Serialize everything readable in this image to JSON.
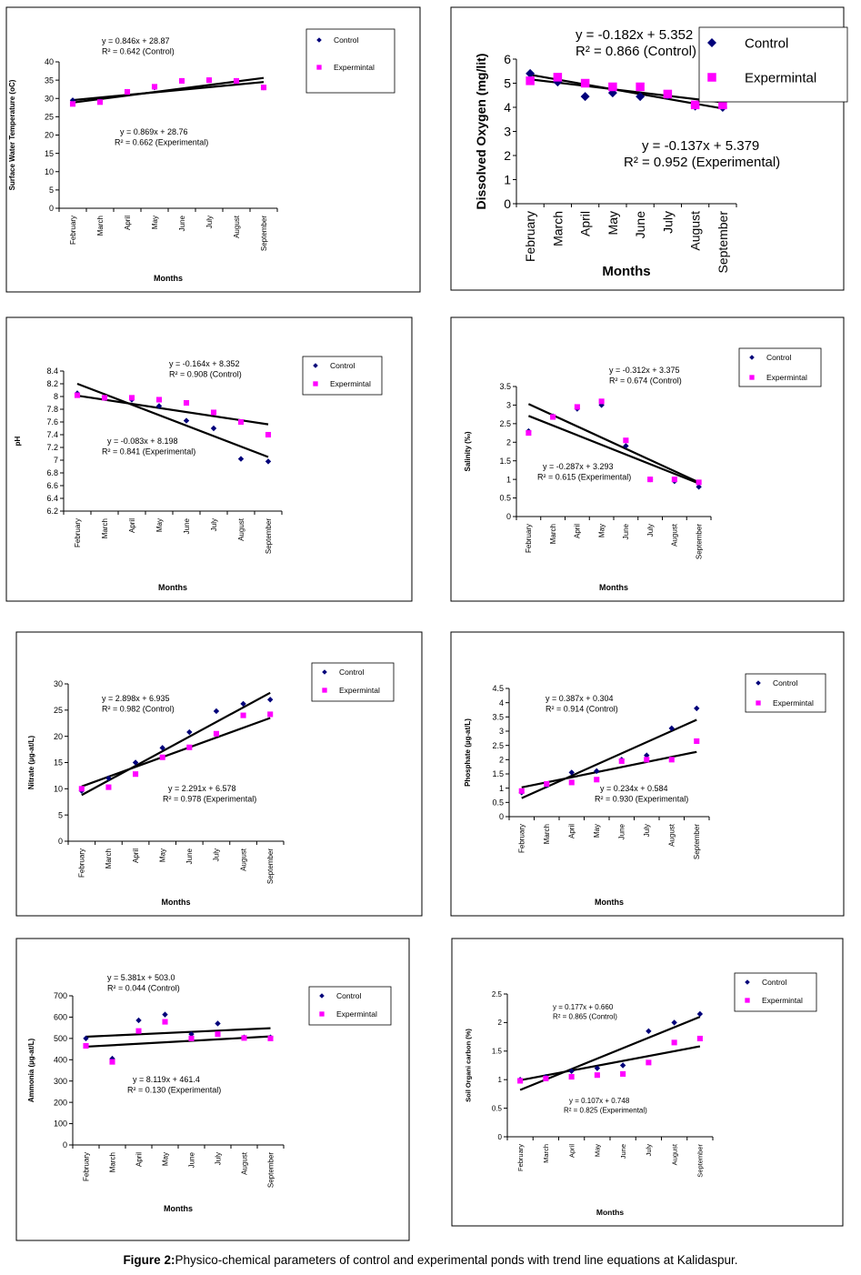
{
  "caption": {
    "bold": "Figure 2:",
    "text": "Physico-chemical parameters of control and experimental ponds with trend line equations at Kalidaspur."
  },
  "months": [
    "February",
    "March",
    "April",
    "May",
    "June",
    "July",
    "August",
    "September"
  ],
  "colors": {
    "control": "#00007a",
    "experimental": "#ff00ff",
    "trend": "#000000"
  },
  "chart_data": [
    {
      "type": "scatter",
      "ylabel": "Surface Water Temperature (oC)",
      "xlabel": "Months",
      "ylim": [
        0,
        40
      ],
      "yticks": [
        0,
        5,
        10,
        15,
        20,
        25,
        30,
        35,
        40
      ],
      "legend": [
        "Control",
        "Expermintal"
      ],
      "series": [
        {
          "name": "Control",
          "values": [
            29.5,
            29.2,
            31.8,
            33.0,
            34.8,
            35.0,
            34.8,
            33.0
          ]
        },
        {
          "name": "Expermintal",
          "values": [
            28.5,
            29.0,
            31.8,
            33.2,
            34.8,
            35.0,
            34.8,
            33.0
          ]
        }
      ],
      "trend_control": {
        "text1": "y = 0.846x + 28.87",
        "text2": "R² = 0.642 (Control)"
      },
      "trend_experimental": {
        "text1": "y = 0.869x + 28.76",
        "text2": "R² = 0.662 (Experimental)"
      }
    },
    {
      "type": "scatter",
      "ylabel": "Dissolved Oxygen (mg/lit)",
      "xlabel": "Months",
      "ylim": [
        0,
        6
      ],
      "yticks": [
        0,
        1,
        2,
        3,
        4,
        5,
        6
      ],
      "legend": [
        "Control",
        "Expermintal"
      ],
      "series": [
        {
          "name": "Control",
          "values": [
            5.4,
            5.05,
            4.45,
            4.6,
            4.45,
            4.5,
            4.05,
            4.0
          ]
        },
        {
          "name": "Expermintal",
          "values": [
            5.1,
            5.25,
            5.0,
            4.85,
            4.85,
            4.55,
            4.1,
            4.1
          ]
        }
      ],
      "trend_control": {
        "text1": "y = -0.182x + 5.352",
        "text2": "R² = 0.866 (Control)"
      },
      "trend_experimental": {
        "text1": "y = -0.137x + 5.379",
        "text2": "R² = 0.952 (Experimental)"
      }
    },
    {
      "type": "scatter",
      "ylabel": "pH",
      "xlabel": "Months",
      "ylim": [
        6.2,
        8.4
      ],
      "yticks": [
        6.2,
        6.4,
        6.6,
        6.8,
        7,
        7.2,
        7.4,
        7.6,
        7.8,
        8,
        8.2,
        8.4
      ],
      "legend": [
        "Control",
        "Expermintal"
      ],
      "series": [
        {
          "name": "Control",
          "values": [
            8.05,
            7.98,
            7.95,
            7.85,
            7.62,
            7.5,
            7.02,
            6.98
          ]
        },
        {
          "name": "Expermintal",
          "values": [
            8.02,
            7.98,
            7.98,
            7.95,
            7.9,
            7.75,
            7.6,
            7.4
          ]
        }
      ],
      "trend_control": {
        "text1": "y = -0.164x + 8.352",
        "text2": "R² = 0.908 (Control)"
      },
      "trend_experimental": {
        "text1": "y = -0.083x + 8.198",
        "text2": "R² = 0.841 (Experimental)"
      }
    },
    {
      "type": "scatter",
      "ylabel": "Salinity (‰)",
      "xlabel": "Months",
      "ylim": [
        0,
        3.5
      ],
      "yticks": [
        0,
        0.5,
        1,
        1.5,
        2,
        2.5,
        3,
        3.5
      ],
      "legend": [
        "Control",
        "Expermintal"
      ],
      "series": [
        {
          "name": "Control",
          "values": [
            2.3,
            2.7,
            2.9,
            3.0,
            1.9,
            1.0,
            0.95,
            0.8
          ]
        },
        {
          "name": "Expermintal",
          "values": [
            2.25,
            2.68,
            2.95,
            3.1,
            2.05,
            1.0,
            1.0,
            0.92
          ]
        }
      ],
      "trend_control": {
        "text1": "y = -0.312x + 3.375",
        "text2": "R² = 0.674 (Control)"
      },
      "trend_experimental": {
        "text1": "y = -0.287x + 3.293",
        "text2": "R² = 0.615 (Experimental)"
      }
    },
    {
      "type": "scatter",
      "ylabel": "Nitrate (µg-at/L)",
      "xlabel": "Months",
      "ylim": [
        0,
        30
      ],
      "yticks": [
        0,
        5,
        10,
        15,
        20,
        25,
        30
      ],
      "legend": [
        "Control",
        "Expermintal"
      ],
      "series": [
        {
          "name": "Control",
          "values": [
            9.6,
            12.0,
            15.0,
            17.8,
            20.8,
            24.8,
            26.2,
            27.0
          ]
        },
        {
          "name": "Expermintal",
          "values": [
            10.0,
            10.3,
            12.8,
            16.0,
            17.9,
            20.5,
            24.0,
            24.2
          ]
        }
      ],
      "trend_control": {
        "text1": "y = 2.898x + 6.935",
        "text2": "R² = 0.982 (Control)"
      },
      "trend_experimental": {
        "text1": "y = 2.291x + 6.578",
        "text2": "R² = 0.978 (Experimental)"
      }
    },
    {
      "type": "scatter",
      "ylabel": "Phosphate (µg-at/L)",
      "xlabel": "Months",
      "ylim": [
        0,
        4.5
      ],
      "yticks": [
        0,
        0.5,
        1,
        1.5,
        2,
        2.5,
        3,
        3.5,
        4,
        4.5
      ],
      "legend": [
        "Control",
        "Expermintal"
      ],
      "series": [
        {
          "name": "Control",
          "values": [
            0.85,
            1.1,
            1.55,
            1.6,
            2.0,
            2.15,
            3.1,
            3.8
          ]
        },
        {
          "name": "Expermintal",
          "values": [
            0.9,
            1.15,
            1.2,
            1.3,
            1.95,
            2.0,
            2.0,
            2.65
          ]
        }
      ],
      "trend_control": {
        "text1": "y = 0.387x + 0.304",
        "text2": "R² = 0.914 (Control)"
      },
      "trend_experimental": {
        "text1": "y = 0.234x + 0.584",
        "text2": "R² = 0.930 (Experimental)"
      }
    },
    {
      "type": "scatter",
      "ylabel": "Ammonia (µg-at/L)",
      "xlabel": "Months",
      "ylim": [
        0,
        700
      ],
      "yticks": [
        0,
        100,
        200,
        300,
        400,
        500,
        600,
        700
      ],
      "legend": [
        "Control",
        "Expermintal"
      ],
      "series": [
        {
          "name": "Control",
          "values": [
            500,
            405,
            585,
            612,
            520,
            570,
            505,
            505
          ]
        },
        {
          "name": "Expermintal",
          "values": [
            465,
            390,
            535,
            578,
            500,
            520,
            502,
            500
          ]
        }
      ],
      "trend_control": {
        "text1": "y = 5.381x + 503.0",
        "text2": "R² = 0.044 (Control)"
      },
      "trend_experimental": {
        "text1": "y = 8.119x + 461.4",
        "text2": "R² = 0.130 (Experimental)"
      }
    },
    {
      "type": "scatter",
      "ylabel": "Soil Organi carbon (%)",
      "xlabel": "Months",
      "ylim": [
        0,
        2.5
      ],
      "yticks": [
        0,
        0.5,
        1,
        1.5,
        2,
        2.5
      ],
      "legend": [
        "Control",
        "Expermintal"
      ],
      "series": [
        {
          "name": "Control",
          "values": [
            1.0,
            1.05,
            1.15,
            1.2,
            1.25,
            1.85,
            2.0,
            2.15
          ]
        },
        {
          "name": "Expermintal",
          "values": [
            0.98,
            1.02,
            1.05,
            1.08,
            1.1,
            1.3,
            1.65,
            1.72
          ]
        }
      ],
      "trend_control": {
        "text1": "y = 0.177x + 0.660",
        "text2": "R² = 0.865 (Control)"
      },
      "trend_experimental": {
        "text1": "y = 0.107x + 0.748",
        "text2": "R² = 0.825 (Experimental)"
      }
    }
  ]
}
